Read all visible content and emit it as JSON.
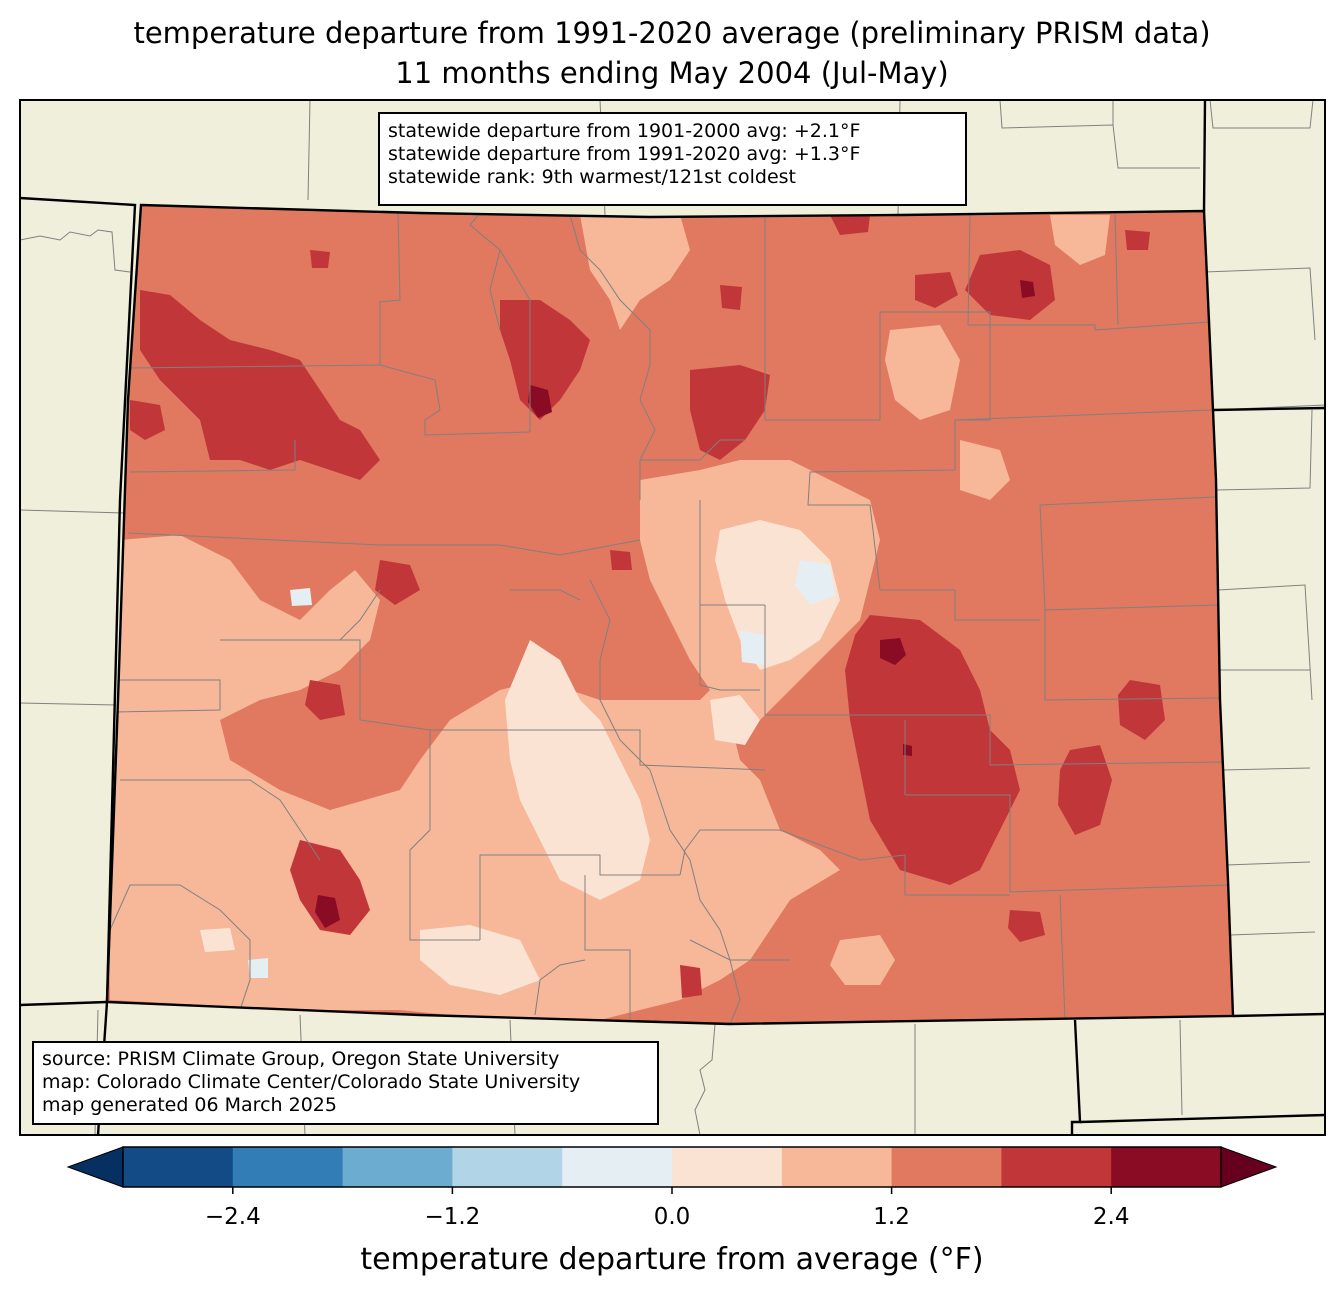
{
  "title": {
    "line1": "temperature departure from 1991-2020 average (preliminary PRISM data)",
    "line2": "11 months ending May 2004 (Jul-May)"
  },
  "stats": {
    "line1": "statewide departure from 1901-2000 avg: +2.1°F",
    "line2": "statewide departure from 1991-2020 avg: +1.3°F",
    "line3": "statewide rank: 9th warmest/121st coldest"
  },
  "source": {
    "line1": "source: PRISM Climate Group, Oregon State University",
    "line2": "map: Colorado Climate Center/Colorado State University",
    "line3": "map generated 06 March 2025"
  },
  "colorbar": {
    "label": "temperature departure from average (°F)",
    "ticks": [
      "−2.4",
      "−1.2",
      "0.0",
      "1.2",
      "2.4"
    ],
    "tick_values": [
      -2.4,
      -1.2,
      0.0,
      1.2,
      2.4
    ],
    "range": [
      -3.0,
      3.0
    ],
    "step": 0.6,
    "under_color": "#053061",
    "over_color": "#67001f",
    "colors": [
      "#134b87",
      "#327db6",
      "#6bacd0",
      "#b1d5e7",
      "#e5eef3",
      "#fbe3d4",
      "#f7b799",
      "#e17860",
      "#c13639",
      "#8a0b24"
    ]
  },
  "map_colors": {
    "land": "#efefdb",
    "state_border": "#000000",
    "county_border": "#808080"
  }
}
